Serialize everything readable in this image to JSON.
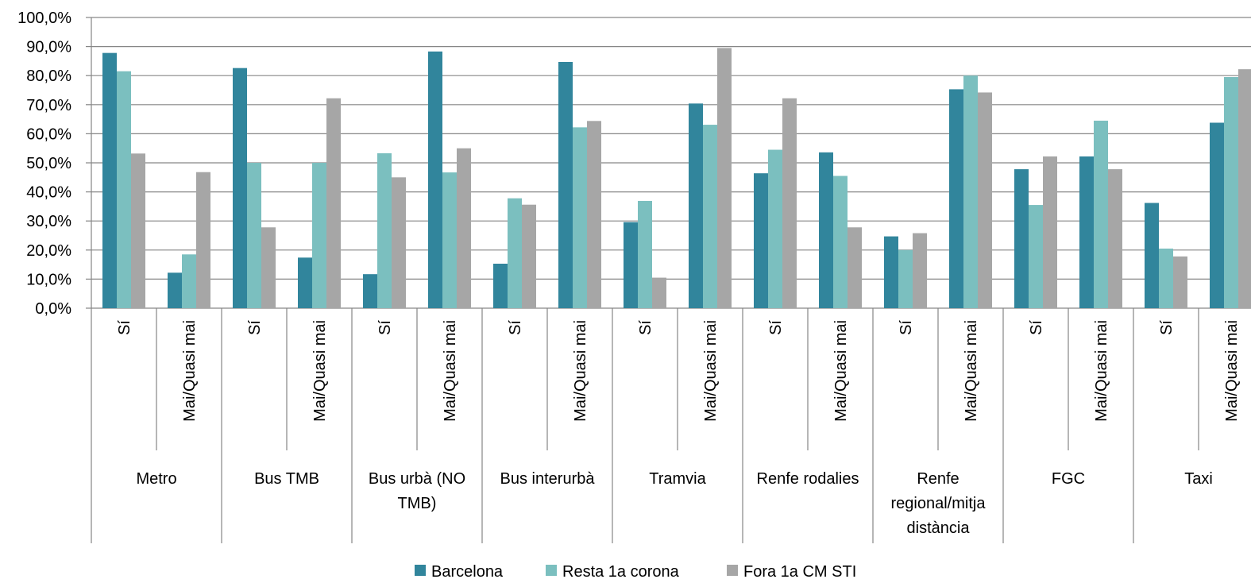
{
  "chart_data": {
    "type": "bar",
    "title": "",
    "xlabel": "",
    "ylabel": "",
    "ylim": [
      0,
      100
    ],
    "y_ticks": [
      "0,0%",
      "10,0%",
      "20,0%",
      "30,0%",
      "40,0%",
      "50,0%",
      "60,0%",
      "70,0%",
      "80,0%",
      "90,0%",
      "100,0%"
    ],
    "grid": true,
    "legend_position": "bottom",
    "groups": [
      {
        "lines": [
          "Metro"
        ]
      },
      {
        "lines": [
          "Bus TMB"
        ]
      },
      {
        "lines": [
          "Bus urbà  (NO",
          "TMB)"
        ]
      },
      {
        "lines": [
          "Bus interurbà"
        ]
      },
      {
        "lines": [
          "Tramvia"
        ]
      },
      {
        "lines": [
          "Renfe rodalies"
        ]
      },
      {
        "lines": [
          "Renfe",
          "regional/mitja",
          "distància"
        ]
      },
      {
        "lines": [
          "FGC"
        ]
      },
      {
        "lines": [
          "Taxi"
        ]
      }
    ],
    "categories": [
      "Sí",
      "Mai/Quasi mai",
      "Sí",
      "Mai/Quasi mai",
      "Sí",
      "Mai/Quasi mai",
      "Sí",
      "Mai/Quasi mai",
      "Sí",
      "Mai/Quasi mai",
      "Sí",
      "Mai/Quasi mai",
      "Sí",
      "Mai/Quasi mai",
      "Sí",
      "Mai/Quasi mai",
      "Sí",
      "Mai/Quasi mai"
    ],
    "series": [
      {
        "name": "Barcelona",
        "color": "#31859C",
        "values": [
          87.8,
          12.2,
          82.6,
          17.4,
          11.7,
          88.3,
          15.3,
          84.7,
          29.6,
          70.4,
          46.4,
          53.6,
          24.7,
          75.3,
          47.8,
          52.2,
          36.2,
          63.8
        ]
      },
      {
        "name": "Resta 1a corona",
        "color": "#7BBFBF",
        "values": [
          81.5,
          18.5,
          50.0,
          50.0,
          53.3,
          46.7,
          37.8,
          62.2,
          36.9,
          63.1,
          54.5,
          45.5,
          20.0,
          80.0,
          35.5,
          64.5,
          20.5,
          79.5
        ]
      },
      {
        "name": "Fora 1a CM STI",
        "color": "#A6A6A6",
        "values": [
          53.2,
          46.8,
          27.8,
          72.2,
          45.0,
          55.0,
          35.6,
          64.4,
          10.5,
          89.5,
          72.2,
          27.8,
          25.8,
          74.2,
          52.2,
          47.8,
          17.8,
          82.2
        ]
      }
    ]
  }
}
